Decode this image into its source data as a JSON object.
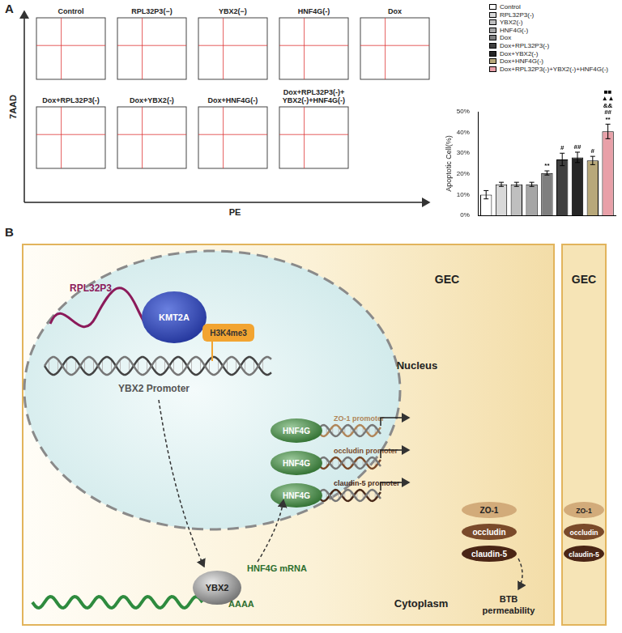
{
  "panel_labels": [
    "A",
    "B"
  ],
  "flow_cytometry": {
    "y_label": "7AAD",
    "x_label": "PE",
    "plots": [
      [
        "Control"
      ],
      [
        "RPL32P3(−)"
      ],
      [
        "YBX2(−)"
      ],
      [
        "HNF4G(-)"
      ],
      [
        "Dox"
      ],
      [
        "Dox+RPL32P3(-)"
      ],
      [
        "Dox+YBX2(-)"
      ],
      [
        "Dox+HNF4G(-)"
      ],
      [
        "Dox+RPL32P3(-)+",
        "YBX2(-)+HNF4G(-)"
      ]
    ]
  },
  "chart_data": {
    "type": "bar",
    "y_label": "Apoptotic Cell(%)",
    "categories": [
      "Control",
      "RPL32P3(-)",
      "YBX2(-)",
      "HNF4G(-)",
      "Dox",
      "Dox+RPL32P3(-)",
      "Dox+YBX2(-)",
      "Dox+HNF4G(-)",
      "Dox+RPL32P3(-)+YBX2(-)+HNF4G(-)"
    ],
    "values": [
      10,
      15,
      15,
      15,
      20.5,
      27,
      28,
      26.5,
      40.5
    ],
    "errors": [
      2,
      1,
      1,
      1,
      1,
      3,
      2.5,
      2,
      3.5
    ],
    "colors": [
      "#ffffff",
      "#d9d9d9",
      "#bfbfbf",
      "#a6a6a6",
      "#7f7f7f",
      "#404040",
      "#262626",
      "#b8a87a",
      "#e8a0a8"
    ],
    "annotations": [
      null,
      null,
      null,
      null,
      [
        "**"
      ],
      [
        "#"
      ],
      [
        "##"
      ],
      [
        "#"
      ],
      [
        "■■",
        "▲▲",
        "&&",
        "##",
        "**"
      ]
    ],
    "ylim": [
      0,
      50
    ],
    "yticks": [
      {
        "value": 0,
        "label": "0%"
      },
      {
        "value": 10,
        "label": "10%"
      },
      {
        "value": 20,
        "label": "20%"
      },
      {
        "value": 30,
        "label": "30%"
      },
      {
        "value": 40,
        "label": "40%"
      },
      {
        "value": 50,
        "label": "50%"
      }
    ],
    "grid": false,
    "legend": "top-right",
    "tick_labels": "y"
  },
  "diagram": {
    "cell_labels": [
      "GEC",
      "GEC"
    ],
    "compartments": [
      "Nucleus",
      "Cytoplasm"
    ],
    "lncrna": "RPL32P3",
    "enzyme": "KMT2A",
    "histone_mark": "H3K4me3",
    "promoter": "YBX2 Promoter",
    "transcription_factors": [
      "HNF4G",
      "HNF4G",
      "HNF4G"
    ],
    "target_promoters": [
      "ZO-1 promoter",
      "occludin promoter",
      "claudin-5 promoter"
    ],
    "junction_proteins": [
      [
        "ZO-1",
        "occludin",
        "claudin-5"
      ],
      [
        "ZO-1",
        "occludin",
        "claudin-5"
      ]
    ],
    "rbp": "YBX2",
    "mrna": "HNF4G mRNA",
    "poly_a": "AAAA",
    "outcome": "BTB permeability"
  }
}
